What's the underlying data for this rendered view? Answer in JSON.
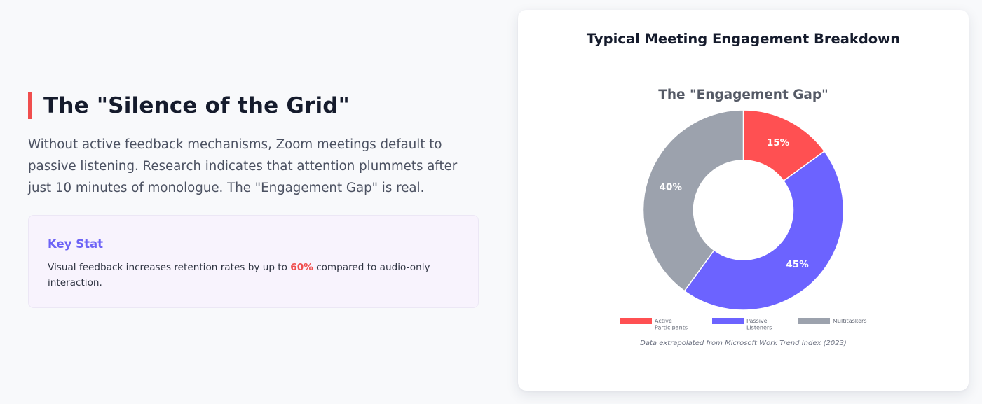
{
  "left": {
    "heading": "The \"Silence of the Grid\"",
    "description": "Without active feedback mechanisms, Zoom meetings default to passive listening. Research indicates that attention plummets after just 10 minutes of monologue. The \"Engagement Gap\" is real.",
    "stat": {
      "title": "Key Stat",
      "text_before": "Visual feedback increases retention rates by up to ",
      "highlight": "60%",
      "text_after": " compared to audio-only interaction."
    }
  },
  "card": {
    "title": "Typical Meeting Engagement Breakdown",
    "source": "Data extrapolated from Microsoft Work Trend Index (2023)"
  },
  "colors": {
    "accent_red": "#f04e4e",
    "accent_purple": "#6d63f6",
    "slice_red": "#ff5052",
    "slice_purple": "#6c63ff",
    "slice_gray": "#9ca2ad"
  },
  "chart_data": {
    "type": "pie",
    "title": "The \"Engagement Gap\"",
    "categories": [
      "Active Participants",
      "Passive Listeners",
      "Multitaskers"
    ],
    "legend_lines": [
      [
        "Active",
        "Participants"
      ],
      [
        "Passive",
        "Listeners"
      ],
      [
        "Multitaskers"
      ]
    ],
    "values": [
      15,
      45,
      40
    ],
    "value_labels": [
      "15%",
      "45%",
      "40%"
    ],
    "colors": [
      "#ff5052",
      "#6c63ff",
      "#9ca2ad"
    ],
    "legend_position": "bottom"
  }
}
